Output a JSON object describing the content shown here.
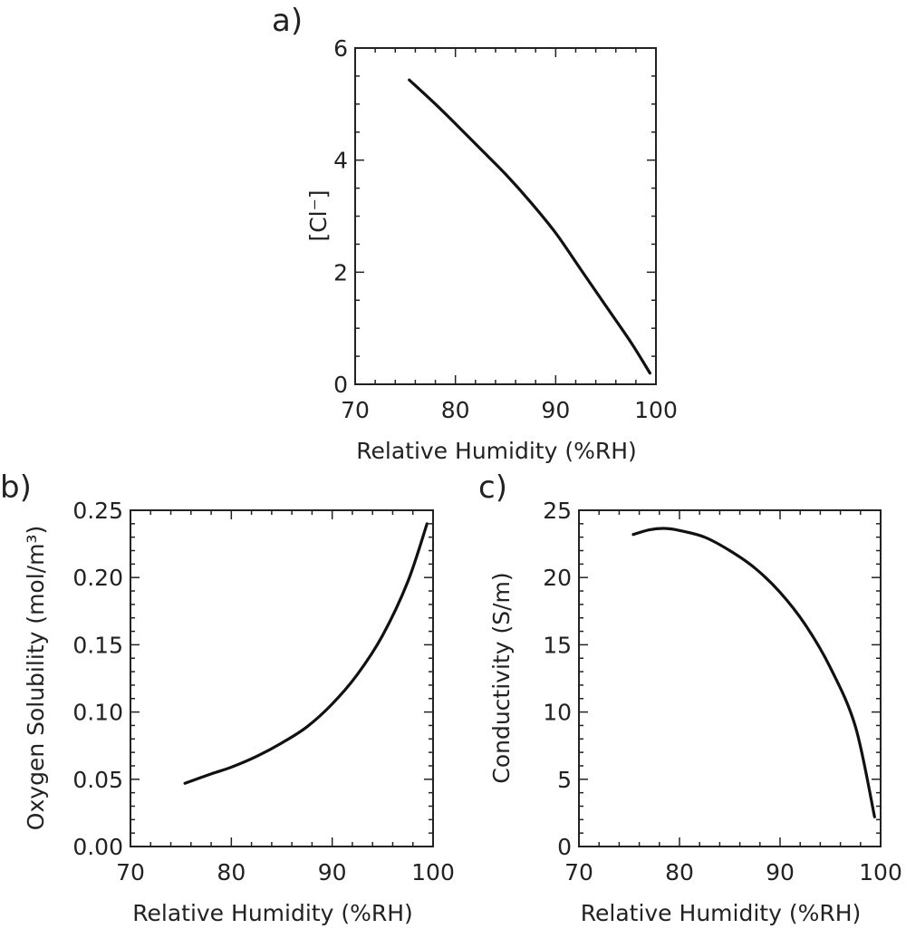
{
  "chart_data": [
    {
      "panel": "a)",
      "type": "line",
      "title": "",
      "xlabel": "Relative Humidity (%RH)",
      "ylabel": "[Cl⁻]",
      "xlim": [
        70,
        100
      ],
      "ylim": [
        0,
        6
      ],
      "xticks": [
        "70",
        "80",
        "90",
        "100"
      ],
      "yticks": [
        "0",
        "2",
        "4",
        "6"
      ],
      "x": [
        75.4,
        78,
        80,
        82.5,
        85,
        87.5,
        90,
        92.5,
        95,
        97.5,
        99.4
      ],
      "series": [
        {
          "name": "[Cl-]",
          "values": [
            5.43,
            5.0,
            4.65,
            4.2,
            3.75,
            3.25,
            2.7,
            2.05,
            1.4,
            0.75,
            0.2
          ]
        }
      ],
      "grid": false
    },
    {
      "panel": "b)",
      "type": "line",
      "title": "",
      "xlabel": "Relative Humidity (%RH)",
      "ylabel": "Oxygen Solubility (mol/m³)",
      "xlim": [
        70,
        100
      ],
      "ylim": [
        0,
        0.25
      ],
      "xticks": [
        "70",
        "80",
        "90",
        "100"
      ],
      "yticks": [
        "0.00",
        "0.05",
        "0.10",
        "0.15",
        "0.20",
        "0.25"
      ],
      "x": [
        75.4,
        78,
        80,
        82.5,
        85,
        87.5,
        90,
        92.5,
        95,
        97.5,
        99.4
      ],
      "series": [
        {
          "name": "Oxygen Solubility",
          "values": [
            0.047,
            0.054,
            0.059,
            0.067,
            0.077,
            0.089,
            0.106,
            0.128,
            0.157,
            0.197,
            0.24
          ]
        }
      ],
      "grid": false
    },
    {
      "panel": "c)",
      "type": "line",
      "title": "",
      "xlabel": "Relative Humidity (%RH)",
      "ylabel": "Conductivity (S/m)",
      "xlim": [
        70,
        100
      ],
      "ylim": [
        0,
        25
      ],
      "xticks": [
        "70",
        "80",
        "90",
        "100"
      ],
      "yticks": [
        "0",
        "5",
        "10",
        "15",
        "20",
        "25"
      ],
      "x": [
        75.4,
        77,
        78.5,
        80,
        82.5,
        85,
        87.5,
        90,
        92.5,
        95,
        97.5,
        99.4
      ],
      "series": [
        {
          "name": "Conductivity",
          "values": [
            23.2,
            23.55,
            23.65,
            23.5,
            23.0,
            22.0,
            20.7,
            18.9,
            16.5,
            13.3,
            8.9,
            2.2
          ]
        }
      ],
      "grid": false
    }
  ]
}
